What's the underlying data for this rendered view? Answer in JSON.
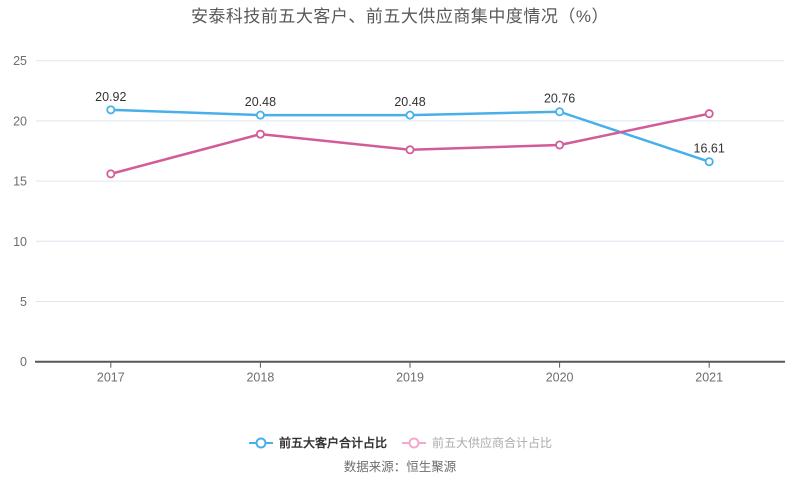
{
  "title": "安泰科技前五大客户、前五大供应商集中度情况（%）",
  "footer": "数据来源：恒生聚源",
  "chart_data": {
    "type": "line",
    "categories": [
      "2017",
      "2018",
      "2019",
      "2020",
      "2021"
    ],
    "series": [
      {
        "name": "前五大客户合计占比",
        "values": [
          20.92,
          20.48,
          20.48,
          20.76,
          16.61
        ],
        "color": "#49AFE9",
        "legend_marker_color": "#49AFE9",
        "legend_active": true,
        "labels_shown": true
      },
      {
        "name": "前五大供应商合计占比",
        "values": [
          15.6,
          18.9,
          17.6,
          18.0,
          20.6
        ],
        "color": "#D25C97",
        "legend_marker_color": "#F2A9CD",
        "legend_active": false,
        "labels_shown": false
      }
    ],
    "ylim": [
      0,
      25
    ],
    "yticks": [
      0,
      5,
      10,
      15,
      20,
      25
    ],
    "grid": true,
    "legend_position": "bottom",
    "marker_style": "open-circle"
  },
  "colors": {
    "background": "#FFFFFF",
    "grid": "#DEE5F0",
    "axis": "#55585C",
    "axis_label": "#6E6E6E",
    "data_label": "#333333",
    "title": "#595959",
    "footer": "#6E6E6E",
    "legend_active_text": "#333333",
    "legend_inactive_text": "#ABABAB",
    "marker_fill": "#FFFFFF"
  }
}
